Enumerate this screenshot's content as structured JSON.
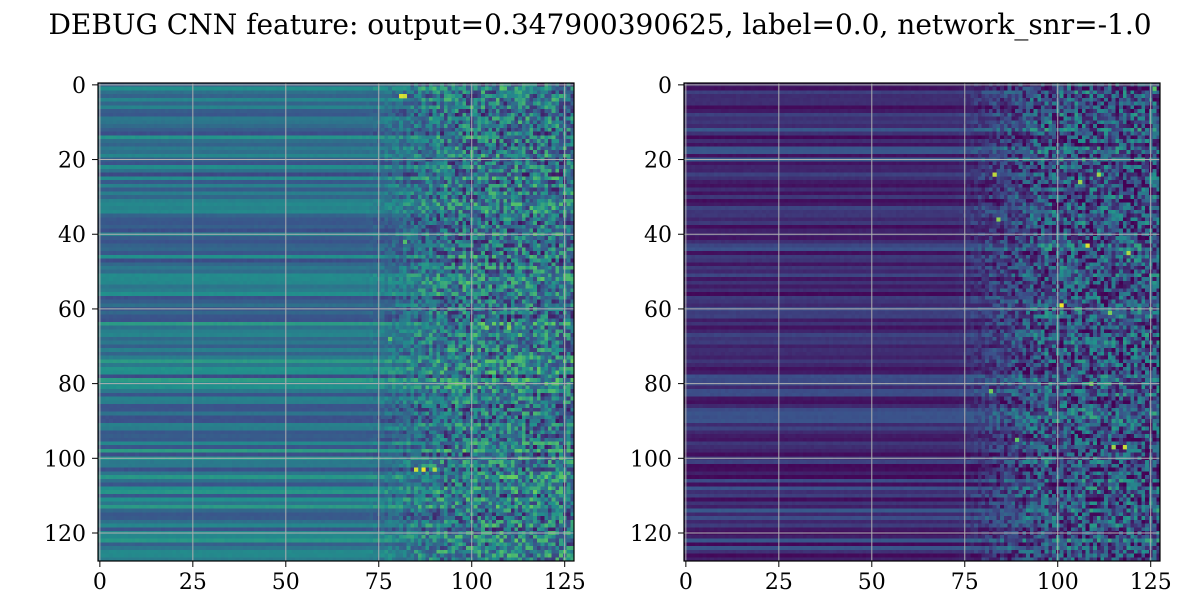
{
  "figure": {
    "title": "DEBUG CNN feature: output=0.347900390625, label=0.0, network_snr=-1.0"
  },
  "chart_data": [
    {
      "type": "heatmap",
      "title": "",
      "xlabel": "",
      "ylabel": "",
      "colormap": "viridis",
      "rows": 128,
      "cols": 128,
      "xlim": [
        0,
        127
      ],
      "ylim": [
        127,
        0
      ],
      "xticks": [
        0,
        25,
        50,
        75,
        100,
        125
      ],
      "yticks": [
        0,
        20,
        40,
        60,
        80,
        100,
        120
      ],
      "grid": true,
      "grid_color": "#b0b0b0",
      "colors": [
        "#440154",
        "#3b528b",
        "#21918c",
        "#5ec962",
        "#fde725"
      ],
      "noise_onset_col": 70,
      "level_range": [
        0.22,
        0.55
      ],
      "hotspots": [
        {
          "x": 81,
          "y": 3,
          "v": 0.95
        },
        {
          "x": 82,
          "y": 3,
          "v": 0.92
        },
        {
          "x": 85,
          "y": 103,
          "v": 0.93
        },
        {
          "x": 87,
          "y": 103,
          "v": 0.98
        },
        {
          "x": 90,
          "y": 103,
          "v": 0.88
        },
        {
          "x": 110,
          "y": 65,
          "v": 0.8
        },
        {
          "x": 104,
          "y": 65,
          "v": 0.78
        },
        {
          "x": 78,
          "y": 68,
          "v": 0.72
        },
        {
          "x": 82,
          "y": 42,
          "v": 0.7
        }
      ]
    },
    {
      "type": "heatmap",
      "title": "",
      "xlabel": "",
      "ylabel": "",
      "colormap": "viridis",
      "rows": 128,
      "cols": 128,
      "xlim": [
        0,
        127
      ],
      "ylim": [
        127,
        0
      ],
      "xticks": [
        0,
        25,
        50,
        75,
        100,
        125
      ],
      "yticks": [
        0,
        20,
        40,
        60,
        80,
        100,
        120
      ],
      "grid": true,
      "grid_color": "#b0b0b0",
      "colors": [
        "#440154",
        "#3b528b",
        "#21918c",
        "#5ec962",
        "#fde725"
      ],
      "noise_onset_col": 72,
      "level_range": [
        0.02,
        0.28
      ],
      "hotspots": [
        {
          "x": 101,
          "y": 59,
          "v": 0.98
        },
        {
          "x": 108,
          "y": 43,
          "v": 0.95
        },
        {
          "x": 83,
          "y": 24,
          "v": 0.9
        },
        {
          "x": 118,
          "y": 97,
          "v": 0.92
        },
        {
          "x": 115,
          "y": 97,
          "v": 0.85
        },
        {
          "x": 119,
          "y": 45,
          "v": 0.88
        },
        {
          "x": 106,
          "y": 26,
          "v": 0.85
        },
        {
          "x": 111,
          "y": 24,
          "v": 0.85
        },
        {
          "x": 84,
          "y": 36,
          "v": 0.82
        },
        {
          "x": 114,
          "y": 61,
          "v": 0.8
        },
        {
          "x": 82,
          "y": 82,
          "v": 0.78
        },
        {
          "x": 109,
          "y": 80,
          "v": 0.78
        },
        {
          "x": 89,
          "y": 95,
          "v": 0.75
        },
        {
          "x": 126,
          "y": 1,
          "v": 0.72
        }
      ]
    }
  ]
}
